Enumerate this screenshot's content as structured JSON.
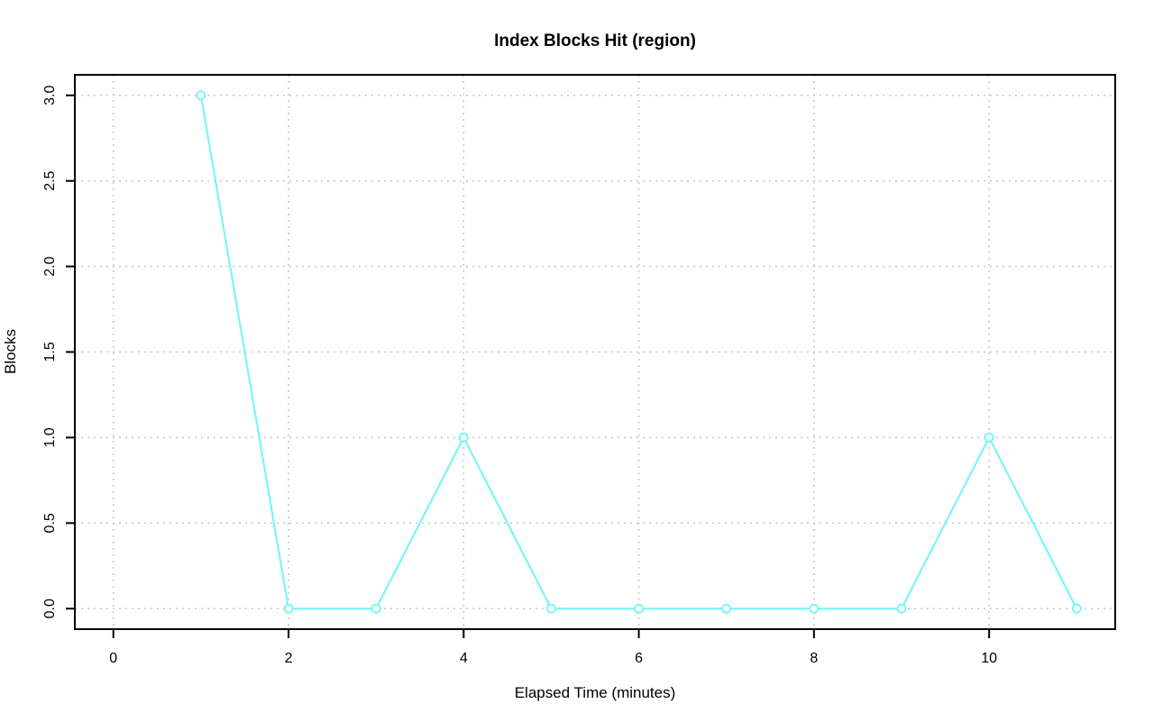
{
  "page": {
    "background": "#ffffff"
  },
  "chart_data": {
    "type": "line",
    "title": "Index Blocks Hit (region)",
    "xlabel": "Elapsed Time (minutes)",
    "ylabel": "Blocks",
    "x": [
      1,
      2,
      3,
      4,
      5,
      6,
      7,
      8,
      9,
      10,
      11
    ],
    "y": [
      3,
      0,
      0,
      1,
      0,
      0,
      0,
      0,
      0,
      1,
      0
    ],
    "xticks": [
      0,
      2,
      4,
      6,
      8,
      10
    ],
    "xtick_labels": [
      "0",
      "2",
      "4",
      "6",
      "8",
      "10"
    ],
    "yticks": [
      0,
      0.5,
      1,
      1.5,
      2,
      2.5,
      3
    ],
    "ytick_labels": [
      "0.0",
      "0.5",
      "1.0",
      "1.5",
      "2.0",
      "2.5",
      "3.0"
    ],
    "xlim": [
      -0.44,
      11.44
    ],
    "ylim": [
      -0.12,
      3.12
    ],
    "grid": true,
    "legend": "none",
    "marker": "open-circle",
    "line_color": "#7bf5f8",
    "grid_color": "#c9c9c9",
    "axis_color": "#000000",
    "title_color": "#000000"
  }
}
